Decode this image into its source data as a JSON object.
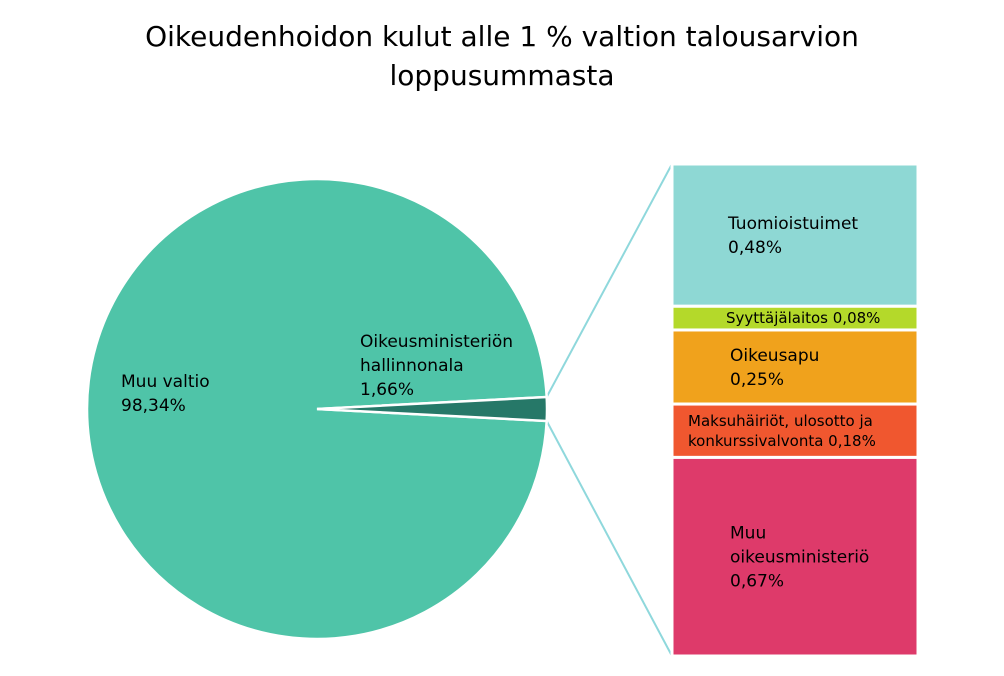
{
  "chart_data": {
    "type": "pie",
    "title": [
      "Oikeudenhoidon kulut alle 1 % valtion talousarvion",
      "loppusummasta"
    ],
    "pie": {
      "slices": [
        {
          "label": [
            "Muu valtio",
            "98,34%"
          ],
          "value": 98.34,
          "color": "#4fc4a8"
        },
        {
          "label": [
            "Oikeusministeriön",
            "hallinnonala",
            "1,66%"
          ],
          "value": 1.66,
          "color": "#267868"
        }
      ]
    },
    "breakdown": {
      "type": "stacked-bar",
      "connector_color": "#8fd8dc",
      "segments": [
        {
          "label": [
            "Tuomioistuimet",
            "0,48%"
          ],
          "value": 0.48,
          "color": "#8ed8d4"
        },
        {
          "label": [
            "Syyttäjälaitos 0,08%"
          ],
          "value": 0.08,
          "color": "#b4d92a"
        },
        {
          "label": [
            "Oikeusapu",
            "0,25%"
          ],
          "value": 0.25,
          "color": "#f0a21c"
        },
        {
          "label": [
            "Maksuhäiriöt, ulosotto ja",
            "konkurssivalvonta 0,18%"
          ],
          "value": 0.18,
          "color": "#f0572f"
        },
        {
          "label": [
            "Muu",
            "oikeusministeriö",
            "0,67%"
          ],
          "value": 0.67,
          "color": "#de3a6a"
        }
      ]
    }
  }
}
